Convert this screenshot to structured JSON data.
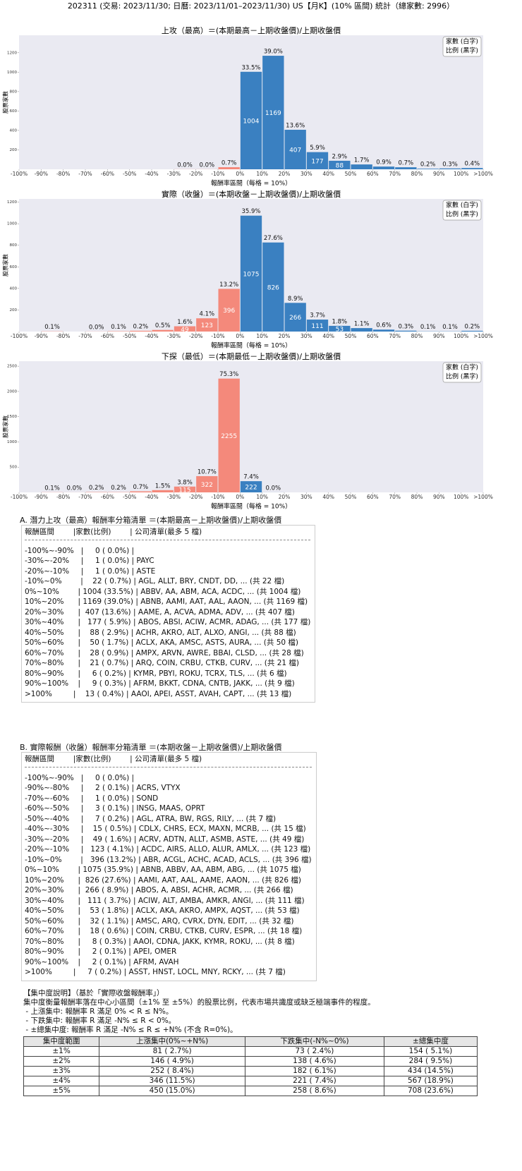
{
  "header": {
    "title": "202311 (交易: 2023/11/30; 日曆: 2023/11/01–2023/11/30) US【月K】(10% 區間) 統計（總家數: 2996）"
  },
  "chart_data": [
    {
      "type": "histogram",
      "title": "上攻（最高）＝(本期最高－上期收盤價)/上期收盤價",
      "xlabel": "報酬率區間（每格 = 10%）",
      "ylabel": "股票家數",
      "legend": [
        "家數 (白字)",
        "比例 (黑字)"
      ],
      "legend_position": "upper right",
      "bins": [
        -100,
        -90,
        -80,
        -70,
        -60,
        -50,
        -40,
        -30,
        -20,
        -10,
        0,
        10,
        20,
        30,
        40,
        50,
        60,
        70,
        80,
        90,
        100,
        110
      ],
      "xlim": [
        -100,
        110
      ],
      "xticks": [
        {
          "value": -100,
          "label": "-100%"
        },
        {
          "value": -90,
          "label": "-90%"
        },
        {
          "value": -80,
          "label": "-80%"
        },
        {
          "value": -70,
          "label": "-70%"
        },
        {
          "value": -60,
          "label": "-60%"
        },
        {
          "value": -50,
          "label": "-50%"
        },
        {
          "value": -40,
          "label": "-40%"
        },
        {
          "value": -30,
          "label": "-30%"
        },
        {
          "value": -20,
          "label": "-20%"
        },
        {
          "value": -10,
          "label": "-10%"
        },
        {
          "value": 0,
          "label": "0%"
        },
        {
          "value": 10,
          "label": "10%"
        },
        {
          "value": 20,
          "label": "20%"
        },
        {
          "value": 30,
          "label": "30%"
        },
        {
          "value": 40,
          "label": "40%"
        },
        {
          "value": 50,
          "label": "50%"
        },
        {
          "value": 60,
          "label": "60%"
        },
        {
          "value": 70,
          "label": "70%"
        },
        {
          "value": 80,
          "label": "80%"
        },
        {
          "value": 90,
          "label": "90%"
        },
        {
          "value": 100,
          "label": "100%"
        },
        {
          "value": 110,
          "label": ">100%"
        }
      ],
      "values": [
        null,
        null,
        null,
        null,
        null,
        null,
        null,
        1,
        1,
        22,
        1004,
        1169,
        407,
        177,
        88,
        50,
        28,
        21,
        6,
        9,
        13
      ],
      "percent_labels": [
        null,
        null,
        null,
        null,
        null,
        null,
        null,
        "0.0%",
        "0.0%",
        "0.7%",
        "33.5%",
        "39.0%",
        "13.6%",
        "5.9%",
        "2.9%",
        "1.7%",
        "0.9%",
        "0.7%",
        "0.2%",
        "0.3%",
        "0.4%"
      ],
      "ylim": [
        0,
        1380
      ],
      "yticks": [
        200,
        400,
        600,
        800,
        1000,
        1200
      ],
      "colors": {
        "negative": "#f4897b",
        "positive": "#3a80c1"
      }
    },
    {
      "type": "histogram",
      "title": "實際（收盤）＝(本期收盤－上期收盤價)/上期收盤價",
      "xlabel": "報酬率區間（每格 = 10%）",
      "ylabel": "股票家數",
      "legend": [
        "家數 (白字)",
        "比例 (黑字)"
      ],
      "legend_position": "upper right",
      "bins": [
        -100,
        -90,
        -80,
        -70,
        -60,
        -50,
        -40,
        -30,
        -20,
        -10,
        0,
        10,
        20,
        30,
        40,
        50,
        60,
        70,
        80,
        90,
        100,
        110
      ],
      "xlim": [
        -100,
        110
      ],
      "xticks": [
        {
          "value": -100,
          "label": "-100%"
        },
        {
          "value": -90,
          "label": "-90%"
        },
        {
          "value": -80,
          "label": "-80%"
        },
        {
          "value": -70,
          "label": "-70%"
        },
        {
          "value": -60,
          "label": "-60%"
        },
        {
          "value": -50,
          "label": "-50%"
        },
        {
          "value": -40,
          "label": "-40%"
        },
        {
          "value": -30,
          "label": "-30%"
        },
        {
          "value": -20,
          "label": "-20%"
        },
        {
          "value": -10,
          "label": "-10%"
        },
        {
          "value": 0,
          "label": "0%"
        },
        {
          "value": 10,
          "label": "10%"
        },
        {
          "value": 20,
          "label": "20%"
        },
        {
          "value": 30,
          "label": "30%"
        },
        {
          "value": 40,
          "label": "40%"
        },
        {
          "value": 50,
          "label": "50%"
        },
        {
          "value": 60,
          "label": "60%"
        },
        {
          "value": 70,
          "label": "70%"
        },
        {
          "value": 80,
          "label": "80%"
        },
        {
          "value": 90,
          "label": "90%"
        },
        {
          "value": 100,
          "label": "100%"
        },
        {
          "value": 110,
          "label": ">100%"
        }
      ],
      "values": [
        null,
        2,
        null,
        1,
        3,
        7,
        15,
        49,
        123,
        396,
        1075,
        826,
        266,
        111,
        53,
        32,
        18,
        8,
        2,
        2,
        7
      ],
      "percent_labels": [
        null,
        "0.1%",
        null,
        "0.0%",
        "0.1%",
        "0.2%",
        "0.5%",
        "1.6%",
        "4.1%",
        "13.2%",
        "35.9%",
        "27.6%",
        "8.9%",
        "3.7%",
        "1.8%",
        "1.1%",
        "0.6%",
        "0.3%",
        "0.1%",
        "0.1%",
        "0.2%"
      ],
      "ylim": [
        0,
        1230
      ],
      "yticks": [
        200,
        400,
        600,
        800,
        1000,
        1200
      ],
      "colors": {
        "negative": "#f4897b",
        "positive": "#3a80c1"
      }
    },
    {
      "type": "histogram",
      "title": "下探（最低）＝(本期最低－上期收盤價)/上期收盤價",
      "xlabel": "報酬率區間（每格 = 10%）",
      "ylabel": "股票家數",
      "legend": [
        "家數 (白字)",
        "比例 (黑字)"
      ],
      "legend_position": "upper right",
      "bins": [
        -100,
        -90,
        -80,
        -70,
        -60,
        -50,
        -40,
        -30,
        -20,
        -10,
        0,
        10,
        20,
        30,
        40,
        50,
        60,
        70,
        80,
        90,
        100,
        110
      ],
      "xlim": [
        -100,
        110
      ],
      "xticks": [
        {
          "value": -100,
          "label": "-100%"
        },
        {
          "value": -90,
          "label": "-90%"
        },
        {
          "value": -80,
          "label": "-80%"
        },
        {
          "value": -70,
          "label": "-70%"
        },
        {
          "value": -60,
          "label": "-60%"
        },
        {
          "value": -50,
          "label": "-50%"
        },
        {
          "value": -40,
          "label": "-40%"
        },
        {
          "value": -30,
          "label": "-30%"
        },
        {
          "value": -20,
          "label": "-20%"
        },
        {
          "value": -10,
          "label": "-10%"
        },
        {
          "value": 0,
          "label": "0%"
        },
        {
          "value": 10,
          "label": "10%"
        },
        {
          "value": 20,
          "label": "20%"
        },
        {
          "value": 30,
          "label": "30%"
        },
        {
          "value": 40,
          "label": "40%"
        },
        {
          "value": 50,
          "label": "50%"
        },
        {
          "value": 60,
          "label": "60%"
        },
        {
          "value": 70,
          "label": "70%"
        },
        {
          "value": 80,
          "label": "80%"
        },
        {
          "value": 90,
          "label": "90%"
        },
        {
          "value": 100,
          "label": "100%"
        },
        {
          "value": 110,
          "label": ">100%"
        }
      ],
      "values": [
        null,
        3,
        1,
        6,
        5,
        21,
        45,
        115,
        322,
        2255,
        222,
        1,
        null,
        null,
        null,
        null,
        null,
        null,
        null,
        null,
        null
      ],
      "percent_labels": [
        null,
        "0.1%",
        "0.0%",
        "0.2%",
        "0.2%",
        "0.7%",
        "1.5%",
        "3.8%",
        "10.7%",
        "75.3%",
        "7.4%",
        "0.0%",
        null,
        null,
        null,
        null,
        null,
        null,
        null,
        null,
        null
      ],
      "ylim": [
        0,
        2600
      ],
      "yticks": [
        500,
        1000,
        1500,
        2000,
        2500
      ],
      "colors": {
        "negative": "#f4897b",
        "positive": "#3a80c1"
      }
    }
  ],
  "tables": [
    {
      "title": "A. 潛力上攻（最高）報酬率分箱清單 ＝(本期最高－上期收盤價)/上期收盤價",
      "header": "報酬區間        |家數(比例)        | 公司清單(最多 5 檔)",
      "rows": [
        "-100%~-90%   |     0 ( 0.0%) |",
        "-30%~-20%     |     1 ( 0.0%) | PAYC",
        "-20%~-10%     |     1 ( 0.0%) | ASTE",
        "-10%~0%        |    22 ( 0.7%) | AGL, ALLT, BRY, CNDT, DD, ... (共 22 檔)",
        "0%~10%        | 1004 (33.5%) | ABBV, AA, ABM, ACA, ACDC, ... (共 1004 檔)",
        "10%~20%      | 1169 (39.0%) | ABNB, AAMI, AAT, AAL, AAON, ... (共 1169 檔)",
        "20%~30%      |  407 (13.6%) | AAME, A, ACVA, ADMA, ADV, ... (共 407 檔)",
        "30%~40%      |   177 ( 5.9%) | ABOS, ABSI, ACIW, ACMR, ADAG, ... (共 177 檔)",
        "40%~50%      |    88 ( 2.9%) | ACHR, AKRO, ALT, ALXO, ANGI, ... (共 88 檔)",
        "50%~60%      |    50 ( 1.7%) | ACLX, AKA, AMSC, ASTS, AURA, ... (共 50 檔)",
        "60%~70%      |    28 ( 0.9%) | AMPX, ARVN, AWRE, BBAI, CLSD, ... (共 28 檔)",
        "70%~80%      |    21 ( 0.7%) | ARQ, COIN, CRBU, CTKB, CURV, ... (共 21 檔)",
        "80%~90%      |     6 ( 0.2%) | KYMR, PBYI, ROKU, TCRX, TLS, ... (共 6 檔)",
        "90%~100%    |     9 ( 0.3%) | AFRM, BKKT, CDNA, CNTB, JAKK, ... (共 9 檔)",
        ">100%         |    13 ( 0.4%) | AAOI, APEI, ASST, AVAH, CAPT, ... (共 13 檔)"
      ]
    },
    {
      "title": "B. 實際報酬（收盤）報酬率分箱清單 ＝(本期收盤－上期收盤價)/上期收盤價",
      "header": "報酬區間        |家數(比例)        | 公司清單(最多 5 檔)",
      "rows": [
        "-100%~-90%   |     0 ( 0.0%) |",
        "-90%~-80%     |     2 ( 0.1%) | ACRS, VTYX",
        "-70%~-60%     |     1 ( 0.0%) | SOND",
        "-60%~-50%     |     3 ( 0.1%) | INSG, MAAS, OPRT",
        "-50%~-40%     |     7 ( 0.2%) | AGL, ATRA, BW, RGS, RILY, ... (共 7 檔)",
        "-40%~-30%     |    15 ( 0.5%) | CDLX, CHRS, ECX, MAXN, MCRB, ... (共 15 檔)",
        "-30%~-20%     |    49 ( 1.6%) | ACRV, ADTN, ALLT, ASMB, ASTE, ... (共 49 檔)",
        "-20%~-10%     |   123 ( 4.1%) | ACDC, AIRS, ALLO, ALUR, AMLX, ... (共 123 檔)",
        "-10%~0%        |   396 (13.2%) | ABR, ACGL, ACHC, ACAD, ACLS, ... (共 396 檔)",
        "0%~10%        | 1075 (35.9%) | ABNB, ABBV, AA, ABM, ABG, ... (共 1075 檔)",
        "10%~20%      |  826 (27.6%) | AAMI, AAT, AAL, AAME, AAON, ... (共 826 檔)",
        "20%~30%      |  266 ( 8.9%) | ABOS, A, ABSI, ACHR, ACMR, ... (共 266 檔)",
        "30%~40%      |   111 ( 3.7%) | ACIW, ALT, AMBA, AMKR, ANGI, ... (共 111 檔)",
        "40%~50%      |    53 ( 1.8%) | ACLX, AKA, AKRO, AMPX, AQST, ... (共 53 檔)",
        "50%~60%      |    32 ( 1.1%) | AMSC, ARQ, CVRX, DYN, EDIT, ... (共 32 檔)",
        "60%~70%      |    18 ( 0.6%) | COIN, CRBU, CTKB, CURV, ESPR, ... (共 18 檔)",
        "70%~80%      |     8 ( 0.3%) | AAOI, CDNA, JAKK, KYMR, ROKU, ... (共 8 檔)",
        "80%~90%      |     2 ( 0.1%) | APEI, OMER",
        "90%~100%    |     2 ( 0.1%) | AFRM, AVAH",
        ">100%         |     7 ( 0.2%) | ASST, HNST, LOCL, MNY, RCKY, ... (共 7 檔)"
      ]
    }
  ],
  "concentration": {
    "title": "【集中度說明】（基於「實際收盤報酬率」）",
    "description": "集中度衡量報酬率落在中心小區間（±1% 至 ±5%）的股票比例，代表市場共識度或缺乏極端事件的程度。",
    "notes": [
      " - 上漲集中: 報酬率 R 滿足 0% < R ≤ N%。",
      " - 下跌集中: 報酬率 R 滿足 -N% ≤ R < 0%。",
      " - ±總集中度: 報酬率 R 滿足 -N% ≤ R ≤ +N% (不含 R=0%)。"
    ],
    "table": {
      "columns": [
        "集中度範圍",
        "上漲集中(0%~+N%)",
        "下跌集中(-N%~0%)",
        "±總集中度"
      ],
      "rows": [
        [
          "±1%",
          "81 ( 2.7%)",
          "73 ( 2.4%)",
          "154 ( 5.1%)"
        ],
        [
          "±2%",
          "146 ( 4.9%)",
          "138 ( 4.6%)",
          "284 ( 9.5%)"
        ],
        [
          "±3%",
          "252 ( 8.4%)",
          "182 ( 6.1%)",
          "434 (14.5%)"
        ],
        [
          "±4%",
          "346 (11.5%)",
          "221 ( 7.4%)",
          "567 (18.9%)"
        ],
        [
          "±5%",
          "450 (15.0%)",
          "258 ( 8.6%)",
          "708 (23.6%)"
        ]
      ]
    }
  }
}
